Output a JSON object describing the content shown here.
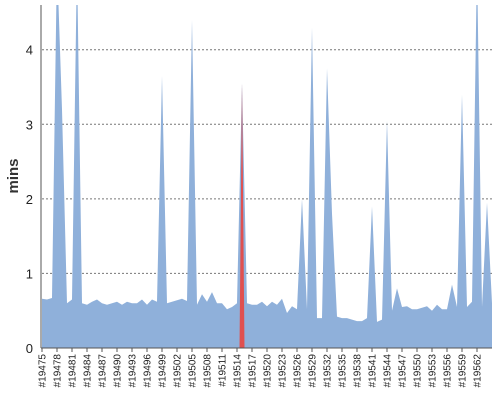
{
  "chart_data": {
    "type": "area",
    "xlabel": "",
    "ylabel": "mins",
    "ylim": [
      0,
      4.6
    ],
    "yticks": [
      0,
      1,
      2,
      3,
      4
    ],
    "grid": "horizontal-dashed",
    "colors": {
      "area": "#8fb0da",
      "highlight": "#e05050",
      "grid": "#777777",
      "axis": "#555555"
    },
    "highlight_build": "#19513",
    "x_tick_labels": [
      "#19475",
      "#19478",
      "#19481",
      "#19484",
      "#19487",
      "#19490",
      "#19493",
      "#19496",
      "#19499",
      "#19502",
      "#19505",
      "#19508",
      "#19511",
      "#19514",
      "#19517",
      "#19520",
      "#19523",
      "#19526",
      "#19529",
      "#19532",
      "#19535",
      "#19538",
      "#19541",
      "#19544",
      "#19547",
      "#19550",
      "#19553",
      "#19556",
      "#19559",
      "#19562"
    ],
    "series": [
      {
        "values": [
          0.66,
          0.65,
          0.67,
          5.2,
          3.2,
          0.6,
          0.65,
          5.2,
          0.6,
          0.58,
          0.62,
          0.65,
          0.6,
          0.58,
          0.6,
          0.62,
          0.58,
          0.62,
          0.6,
          0.6,
          0.65,
          0.58,
          0.65,
          0.62,
          3.65,
          0.6,
          0.62,
          0.64,
          0.66,
          0.63,
          4.4,
          0.58,
          0.72,
          0.62,
          0.75,
          0.6,
          0.6,
          0.52,
          0.55,
          0.6,
          3.55,
          0.6,
          0.58,
          0.58,
          0.62,
          0.56,
          0.62,
          0.58,
          0.66,
          0.47,
          0.56,
          0.52,
          2.0,
          0.52,
          4.3,
          0.4,
          0.4,
          3.75,
          1.8,
          0.42,
          0.4,
          0.4,
          0.38,
          0.36,
          0.36,
          0.4,
          1.9,
          0.35,
          0.38,
          3.05,
          0.5,
          0.8,
          0.55,
          0.56,
          0.52,
          0.52,
          0.54,
          0.56,
          0.5,
          0.58,
          0.52,
          0.52,
          0.85,
          0.55,
          3.4,
          0.55,
          0.62,
          5.2,
          0.55,
          1.95,
          0.6
        ]
      }
    ]
  }
}
